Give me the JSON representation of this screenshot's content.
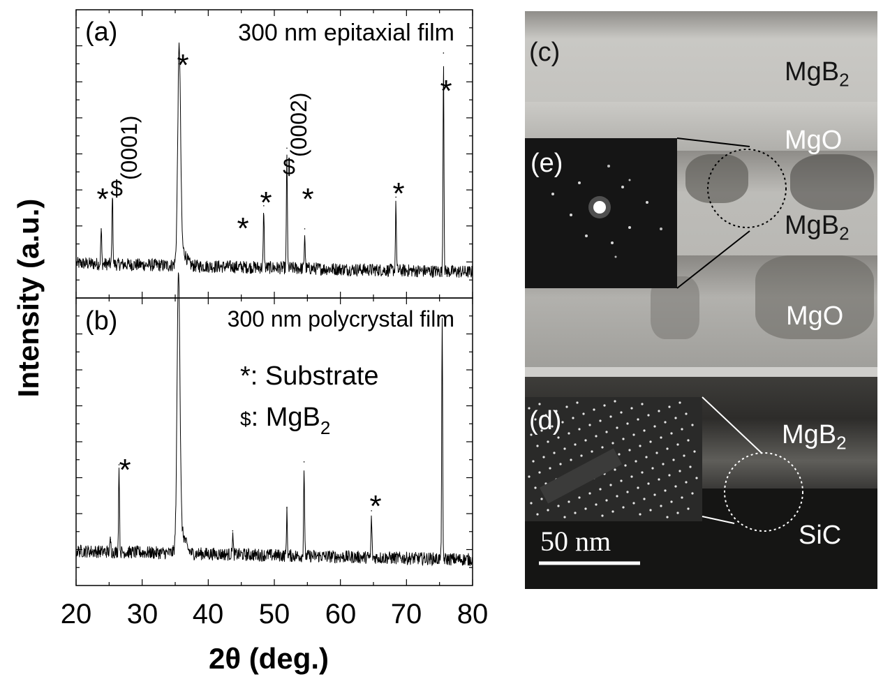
{
  "xrd_figure": {
    "y_axis_label": "Intensity (a.u.)",
    "x_axis_label": "2θ (deg.)",
    "x_ticks": [
      "20",
      "30",
      "40",
      "50",
      "60",
      "70",
      "80"
    ],
    "panel_a": {
      "label": "(a)",
      "title": "300 nm epitaxial film",
      "peak_labels": [
        "*",
        "$",
        "(0001)",
        "*",
        "*",
        "*",
        "$",
        "(0002)",
        "*",
        "*",
        "*"
      ]
    },
    "panel_b": {
      "label": "(b)",
      "title": "300 nm polycrystal film",
      "legend": [
        {
          "symbol": "*",
          "text": ": Substrate"
        },
        {
          "symbol": "$",
          "text": ": MgB",
          "subscript": "2"
        }
      ],
      "peak_labels": [
        "*",
        "*"
      ]
    }
  },
  "chart_data": [
    {
      "type": "line",
      "title": "300 nm epitaxial film",
      "xlabel": "2θ (deg.)",
      "ylabel": "Intensity (a.u.)",
      "xlim": [
        20,
        80
      ],
      "baseline": 0.12,
      "peaks": [
        {
          "x": 23.8,
          "height": 0.12,
          "marker": "*"
        },
        {
          "x": 25.5,
          "height": 0.25,
          "marker": "$ (0001)"
        },
        {
          "x": 35.6,
          "height": 0.73,
          "marker": "*",
          "broad": true
        },
        {
          "x": 48.4,
          "height": 0.2,
          "marker": "*"
        },
        {
          "x": 51.9,
          "height": 0.4,
          "marker": "$ (0002)"
        },
        {
          "x": 54.6,
          "height": 0.12,
          "marker": "*"
        },
        {
          "x": 68.4,
          "height": 0.23,
          "marker": "*"
        },
        {
          "x": 75.6,
          "height": 0.73,
          "marker": "*"
        }
      ]
    },
    {
      "type": "line",
      "title": "300 nm polycrystal film",
      "xlabel": "2θ (deg.)",
      "ylabel": "Intensity (a.u.)",
      "xlim": [
        20,
        80
      ],
      "baseline": 0.12,
      "peaks": [
        {
          "x": 25.2,
          "height": 0.04
        },
        {
          "x": 26.5,
          "height": 0.3,
          "marker": "*"
        },
        {
          "x": 35.5,
          "height": 0.95,
          "broad": true
        },
        {
          "x": 43.7,
          "height": 0.07
        },
        {
          "x": 51.9,
          "height": 0.15
        },
        {
          "x": 54.5,
          "height": 0.31
        },
        {
          "x": 64.7,
          "height": 0.14,
          "marker": "*"
        },
        {
          "x": 75.4,
          "height": 0.82
        }
      ]
    }
  ],
  "tem_figure": {
    "panel_c": "(c)",
    "panel_d": "(d)",
    "panel_e": "(e)",
    "layers": [
      {
        "name": "MgB",
        "sub": "2",
        "tone": "dark"
      },
      {
        "name": "MgO",
        "sub": "",
        "tone": "light"
      },
      {
        "name": "MgB",
        "sub": "2",
        "tone": "dark"
      },
      {
        "name": "MgO",
        "sub": "",
        "tone": "light"
      },
      {
        "name": "MgB",
        "sub": "2",
        "tone": "light"
      },
      {
        "name": "SiC",
        "sub": "",
        "tone": "light"
      }
    ],
    "scale_bar": "50 nm"
  }
}
